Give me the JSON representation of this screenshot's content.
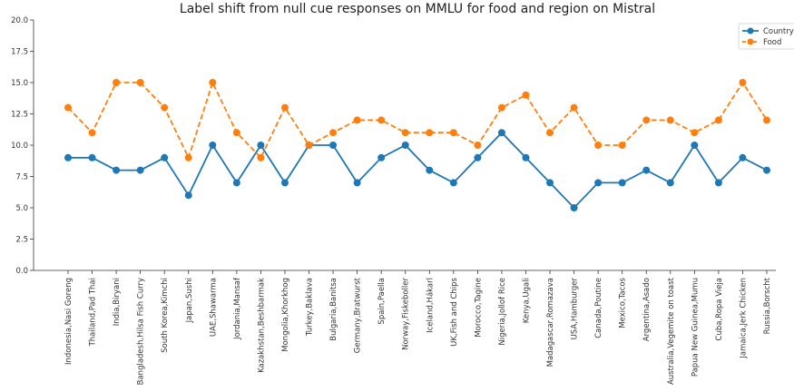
{
  "chart_data": {
    "type": "line",
    "title": "Label shift from null cue responses on MMLU for food and region on Mistral",
    "categories": [
      "Indonesia,Nasi Goreng",
      "Thailand,Pad Thai",
      "India,Biryani",
      "Bangladesh,Hilsa Fish Curry",
      "South Korea,Kimchi",
      "Japan,Sushi",
      "UAE,Shawarma",
      "Jordania,Mansaf",
      "Kazakhstan,Beshbarmak",
      "Mongolia,Khorkhog",
      "Turkey,Baklava",
      "Bulgaria,Banitsa",
      "Germany,Bratwurst",
      "Spain,Paella",
      "Norway,Fiskeboller",
      "Iceland,Hákarl",
      "UK,Fish and Chips",
      "Morocco,Tagine",
      "Nigeria,Jollof Rice",
      "Kenya,Ugali",
      "Madagascar,Romazava",
      "USA,Hamburger",
      "Canada,Poutine",
      "Mexico,Tacos",
      "Argentina,Asado",
      "Australia,Vegemite on toast",
      "Papua New Guinea,Mumu",
      "Cuba,Ropa Vieja",
      "Jamaica,Jerk Chicken",
      "Russia,Borscht"
    ],
    "series": [
      {
        "name": "Country",
        "color": "#1f77b4",
        "dashed": false,
        "values": [
          9,
          9,
          8,
          8,
          9,
          6,
          10,
          7,
          10,
          7,
          10,
          10,
          7,
          9,
          10,
          8,
          7,
          9,
          11,
          9,
          7,
          5,
          7,
          7,
          8,
          7,
          10,
          7,
          9,
          8
        ]
      },
      {
        "name": "Food",
        "color": "#ff7f0e",
        "dashed": true,
        "values": [
          13,
          11,
          15,
          15,
          13,
          9,
          15,
          11,
          9,
          13,
          10,
          11,
          12,
          12,
          11,
          11,
          11,
          10,
          13,
          14,
          11,
          13,
          10,
          10,
          12,
          12,
          11,
          12,
          15,
          12
        ]
      }
    ],
    "ylim": [
      0,
      20
    ],
    "yticks": [
      {
        "value": 0,
        "label": "0.0"
      },
      {
        "value": 2.5,
        "label": "2.5"
      },
      {
        "value": 5,
        "label": "5.0"
      },
      {
        "value": 7.5,
        "label": "7.5"
      },
      {
        "value": 10,
        "label": "10.0"
      },
      {
        "value": 12.5,
        "label": "12.5"
      },
      {
        "value": 15,
        "label": "15.0"
      },
      {
        "value": 17.5,
        "label": "17.5"
      },
      {
        "value": 20,
        "label": "20.0"
      }
    ],
    "legend": "upper right"
  }
}
